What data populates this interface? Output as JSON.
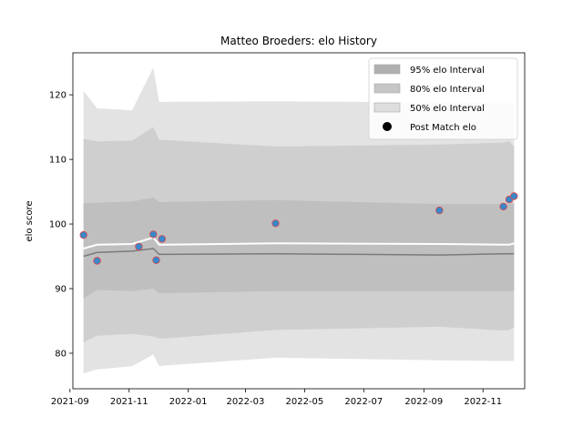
{
  "chart_data": {
    "type": "area",
    "title": "Matteo Broeders: elo History",
    "xlabel": "",
    "ylabel": "elo score",
    "x_axis": "date",
    "xlim": [
      "2021-09-04",
      "2022-12-14"
    ],
    "ylim": [
      74.5,
      126.5
    ],
    "x_ticks": [
      "2021-09",
      "2021-11",
      "2022-01",
      "2022-03",
      "2022-05",
      "2022-07",
      "2022-09",
      "2022-11"
    ],
    "y_ticks": [
      80,
      90,
      100,
      110,
      120
    ],
    "legend_position": "top-right",
    "colors": {
      "band_95": "#e3e3e3",
      "band_80": "#cfcfcf",
      "band_50": "#bfbfbf",
      "median_line": "#7a7a7a",
      "mean_line": "#ffffff",
      "marker_fill": "#3a87c9",
      "marker_edge": "#e04848"
    },
    "dates": [
      "2021-09-15",
      "2021-09-29",
      "2021-11-04",
      "2021-11-26",
      "2021-12-02",
      "2021-12-08",
      "2022-04-01",
      "2022-09-17",
      "2022-11-22",
      "2022-11-28",
      "2022-12-03"
    ],
    "series": [
      {
        "name": "95% elo Interval",
        "kind": "band",
        "lower": [
          76.9,
          77.5,
          78.0,
          79.8,
          78.0,
          78.1,
          79.3,
          78.9,
          78.8,
          78.8,
          78.8
        ],
        "upper": [
          120.6,
          117.9,
          117.6,
          124.2,
          118.9,
          118.9,
          119.0,
          118.8,
          118.7,
          118.7,
          118.6
        ]
      },
      {
        "name": "80% elo Interval",
        "kind": "band",
        "lower": [
          81.7,
          82.7,
          83.0,
          82.6,
          82.3,
          82.3,
          83.6,
          84.1,
          83.5,
          83.6,
          84.0
        ],
        "upper": [
          113.2,
          112.8,
          112.9,
          115.0,
          113.0,
          113.0,
          112.0,
          112.3,
          112.6,
          112.8,
          112.0
        ]
      },
      {
        "name": "50% elo Interval",
        "kind": "band",
        "lower": [
          88.5,
          89.8,
          89.6,
          90.0,
          89.3,
          89.3,
          89.6,
          89.6,
          89.6,
          89.6,
          89.6
        ],
        "upper": [
          103.2,
          103.3,
          103.5,
          104.1,
          103.4,
          103.4,
          103.7,
          103.1,
          103.1,
          103.1,
          103.2
        ]
      },
      {
        "name": "",
        "kind": "line",
        "role": "median",
        "values": [
          95.0,
          95.6,
          95.8,
          96.2,
          95.3,
          95.3,
          95.4,
          95.2,
          95.4,
          95.4,
          95.4
        ]
      },
      {
        "name": "",
        "kind": "line",
        "role": "mean",
        "values": [
          96.2,
          96.8,
          96.9,
          97.9,
          96.8,
          96.8,
          97.0,
          96.9,
          96.8,
          96.8,
          97.0
        ]
      },
      {
        "name": "Post Match elo",
        "kind": "scatter",
        "points": [
          {
            "x": "2021-09-15",
            "y": 98.3
          },
          {
            "x": "2021-09-29",
            "y": 94.3
          },
          {
            "x": "2021-11-11",
            "y": 96.5
          },
          {
            "x": "2021-11-26",
            "y": 98.4
          },
          {
            "x": "2021-11-29",
            "y": 94.4
          },
          {
            "x": "2021-12-05",
            "y": 97.7
          },
          {
            "x": "2022-04-01",
            "y": 100.1
          },
          {
            "x": "2022-09-17",
            "y": 102.1
          },
          {
            "x": "2022-11-22",
            "y": 102.7
          },
          {
            "x": "2022-11-28",
            "y": 103.8
          },
          {
            "x": "2022-12-03",
            "y": 104.3
          }
        ]
      }
    ]
  }
}
